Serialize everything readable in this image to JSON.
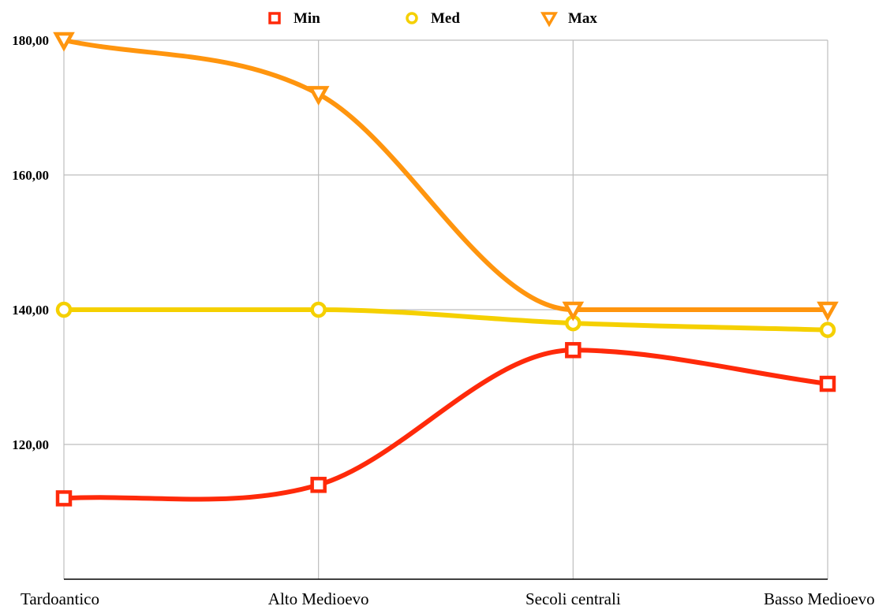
{
  "chart_data": {
    "type": "line",
    "categories": [
      "Tardoantico",
      "Alto Medioevo",
      "Secoli centrali",
      "Basso Medioevo"
    ],
    "ylim": [
      100,
      180
    ],
    "yticks": [
      120,
      140,
      160,
      180
    ],
    "ytick_labels": [
      "120,00",
      "140,00",
      "160,00",
      "180,00"
    ],
    "grid": true,
    "legend_position": "top",
    "smooth": true,
    "series": [
      {
        "name": "Min",
        "values": [
          112,
          114,
          134,
          129
        ],
        "color": "#ff2a0a",
        "marker": "square"
      },
      {
        "name": "Med",
        "values": [
          140,
          140,
          138,
          137
        ],
        "color": "#f5d000",
        "marker": "circle"
      },
      {
        "name": "Max",
        "values": [
          180,
          172,
          140,
          140
        ],
        "color": "#ff950e",
        "marker": "triangle-down"
      }
    ]
  }
}
